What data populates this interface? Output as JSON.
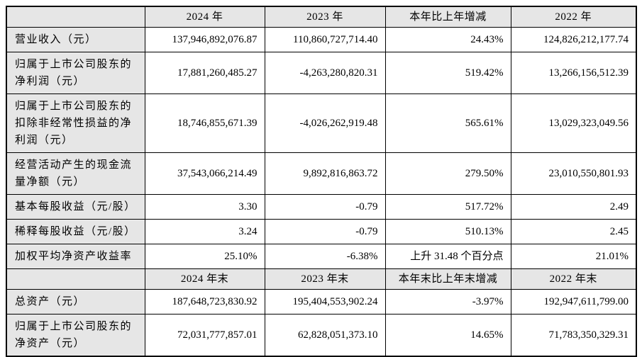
{
  "table": {
    "header1": {
      "corner": "",
      "cols": [
        "2024 年",
        "2023 年",
        "本年比上年增减",
        "2022 年"
      ]
    },
    "rows1": [
      {
        "label": "营业收入（元）",
        "values": [
          "137,946,892,076.87",
          "110,860,727,714.40",
          "24.43%",
          "124,826,212,177.74"
        ]
      },
      {
        "label": "归属于上市公司股东的净利润（元）",
        "values": [
          "17,881,260,485.27",
          "-4,263,280,820.31",
          "519.42%",
          "13,266,156,512.39"
        ]
      },
      {
        "label": "归属于上市公司股东的扣除非经常性损益的净利润（元）",
        "values": [
          "18,746,855,671.39",
          "-4,026,262,919.48",
          "565.61%",
          "13,029,323,049.56"
        ]
      },
      {
        "label": "经营活动产生的现金流量净额（元）",
        "values": [
          "37,543,066,214.49",
          "9,892,816,863.72",
          "279.50%",
          "23,010,550,801.93"
        ]
      },
      {
        "label": "基本每股收益（元/股）",
        "values": [
          "3.30",
          "-0.79",
          "517.72%",
          "2.49"
        ]
      },
      {
        "label": "稀释每股收益（元/股）",
        "values": [
          "3.24",
          "-0.79",
          "510.13%",
          "2.45"
        ]
      },
      {
        "label": "加权平均净资产收益率",
        "values": [
          "25.10%",
          "-6.38%",
          "上升 31.48 个百分点",
          "21.01%"
        ]
      }
    ],
    "header2": {
      "corner": "",
      "cols": [
        "2024 年末",
        "2023 年末",
        "本年末比上年末增减",
        "2022 年末"
      ]
    },
    "rows2": [
      {
        "label": "总资产（元）",
        "values": [
          "187,648,723,830.92",
          "195,404,553,902.24",
          "-3.97%",
          "192,947,611,799.00"
        ]
      },
      {
        "label": "归属于上市公司股东的净资产（元）",
        "values": [
          "72,031,777,857.01",
          "62,828,051,373.10",
          "14.65%",
          "71,783,350,329.31"
        ]
      }
    ],
    "colors": {
      "header_bg": "#e6e6e6",
      "label_bg": "#e6e6e6",
      "border": "#000000",
      "cell_bg": "#ffffff"
    }
  }
}
